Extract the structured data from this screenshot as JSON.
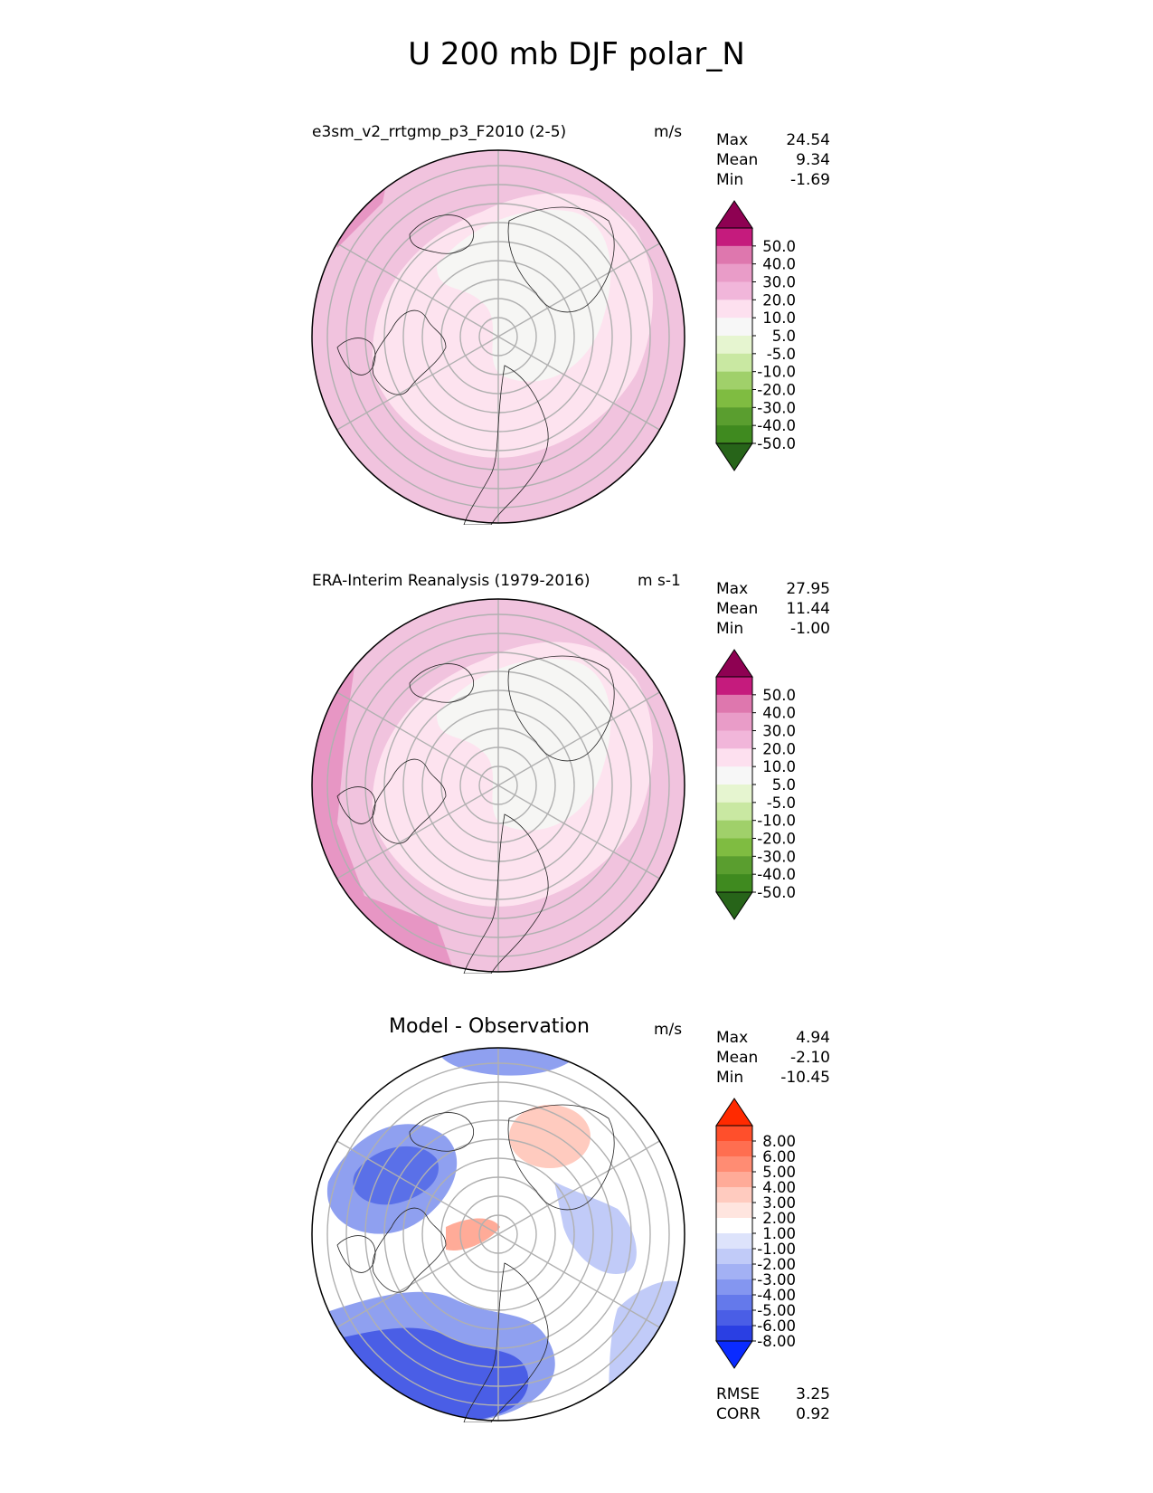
{
  "title": "U 200 mb DJF polar_N",
  "panels": [
    {
      "id": "test",
      "title": "e3sm_v2_rrtgmp_p3_F2010 (2-5)",
      "units": "m/s",
      "stats": [
        {
          "label": "Max",
          "value": "24.54"
        },
        {
          "label": "Mean",
          "value": "9.34"
        },
        {
          "label": "Min",
          "value": "-1.69"
        }
      ],
      "colorbar": {
        "labels": [
          "50.0",
          "40.0",
          "30.0",
          "20.0",
          "10.0",
          "5.0",
          "-5.0",
          "-10.0",
          "-20.0",
          "-30.0",
          "-40.0",
          "-50.0"
        ],
        "colors": [
          "#8e0152",
          "#c51b7d",
          "#de77ae",
          "#e99cc8",
          "#f1b6da",
          "#fde0ef",
          "#f7f7f7",
          "#e6f5d0",
          "#c9e8a2",
          "#a0d06a",
          "#7fbc41",
          "#5a9e2f",
          "#3f8a1f",
          "#276419"
        ]
      },
      "field": {
        "background": "#f1c3de",
        "rings": [
          {
            "color": "#fde3ef"
          },
          {
            "color": "#f6f6f4"
          }
        ]
      }
    },
    {
      "id": "reference",
      "title": "ERA-Interim Reanalysis (1979-2016)",
      "units": "m s-1",
      "stats": [
        {
          "label": "Max",
          "value": "27.95"
        },
        {
          "label": "Mean",
          "value": "11.44"
        },
        {
          "label": "Min",
          "value": "-1.00"
        }
      ],
      "colorbar": {
        "labels": [
          "50.0",
          "40.0",
          "30.0",
          "20.0",
          "10.0",
          "5.0",
          "-5.0",
          "-10.0",
          "-20.0",
          "-30.0",
          "-40.0",
          "-50.0"
        ],
        "colors": [
          "#8e0152",
          "#c51b7d",
          "#de77ae",
          "#e99cc8",
          "#f1b6da",
          "#fde0ef",
          "#f7f7f7",
          "#e6f5d0",
          "#c9e8a2",
          "#a0d06a",
          "#7fbc41",
          "#5a9e2f",
          "#3f8a1f",
          "#276419"
        ]
      },
      "field": {
        "background": "#f1c3de",
        "rings": [
          {
            "color": "#fde3ef"
          },
          {
            "color": "#f6f6f4"
          }
        ]
      }
    },
    {
      "id": "diff",
      "title": "Model - Observation",
      "units": "m/s",
      "stats": [
        {
          "label": "Max",
          "value": "4.94"
        },
        {
          "label": "Mean",
          "value": "-2.10"
        },
        {
          "label": "Min",
          "value": "-10.45"
        }
      ],
      "colorbar": {
        "labels": [
          "8.00",
          "6.00",
          "5.00",
          "4.00",
          "3.00",
          "2.00",
          "1.00",
          "-1.00",
          "-2.00",
          "-3.00",
          "-4.00",
          "-5.00",
          "-6.00",
          "-8.00"
        ],
        "colors": [
          "#ff2a00",
          "#ff4f2b",
          "#ff6e50",
          "#ff8c73",
          "#ffab98",
          "#ffcbbf",
          "#ffe5df",
          "#ffffff",
          "#dde3fb",
          "#c1cbf8",
          "#a3b1f4",
          "#8496f0",
          "#6479eb",
          "#4a5ee6",
          "#2a3fe3",
          "#0a2bff"
        ]
      },
      "field": {
        "background": "#ffffff"
      },
      "metrics": [
        {
          "label": "RMSE",
          "value": "3.25"
        },
        {
          "label": "CORR",
          "value": "0.92"
        }
      ]
    }
  ]
}
